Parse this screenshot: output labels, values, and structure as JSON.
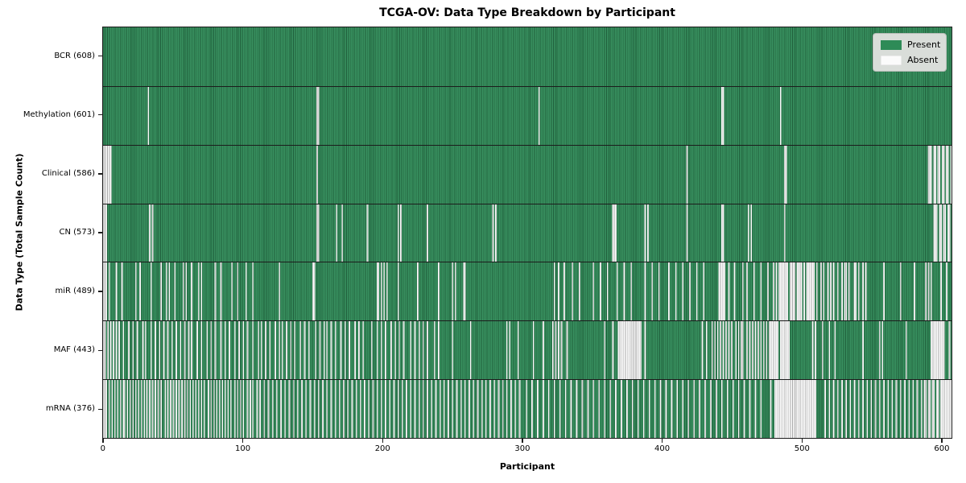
{
  "title": "TCGA-OV: Data Type Breakdown by Participant",
  "legend": {
    "items": [
      {
        "label": "Present",
        "color": "#2e8b57"
      },
      {
        "label": "Absent",
        "color": "#fbfbfb"
      }
    ]
  },
  "colors": {
    "present": "#2e8b57",
    "absent": "#fbfbfb",
    "edge": "rgba(0,0,0,0.32)",
    "edge_light": "rgba(255,255,255,0.05)",
    "spine": "#1c1c1c",
    "legend_bg": "#d9ddd9"
  },
  "chart_data": {
    "type": "heatmap",
    "title": "TCGA-OV: Data Type Breakdown by Participant",
    "xlabel": "Participant",
    "ylabel": "Data Type (Total Sample Count)",
    "x_ticks": [
      0,
      100,
      200,
      300,
      400,
      500,
      600
    ],
    "n_participants": 608,
    "legend": [
      "Present",
      "Absent"
    ],
    "cell_states": {
      "present": 1,
      "absent": 0
    },
    "rows": [
      {
        "name": "BCR",
        "present_count": 608,
        "label": "BCR (608)",
        "absent_participants": []
      },
      {
        "name": "Methylation",
        "present_count": 601,
        "label": "Methylation (601)",
        "absent_participants": [
          32,
          153,
          154,
          312,
          443,
          444,
          485
        ]
      },
      {
        "name": "Clinical",
        "present_count": 586,
        "label": "Clinical (586)",
        "absent_participants": [
          0,
          1,
          2,
          3,
          4,
          5,
          153,
          418,
          488,
          489,
          591,
          592,
          593,
          595,
          596,
          598,
          599,
          601,
          602,
          604,
          605,
          607
        ]
      },
      {
        "name": "CN",
        "present_count": 573,
        "label": "CN (573)",
        "absent_participants": [
          0,
          1,
          2,
          33,
          35,
          153,
          154,
          167,
          171,
          189,
          211,
          213,
          232,
          279,
          281,
          365,
          366,
          367,
          388,
          390,
          418,
          443,
          444,
          462,
          464,
          488,
          595,
          596,
          597,
          599,
          600,
          602,
          603,
          605,
          606
        ]
      },
      {
        "name": "miR",
        "present_count": 489,
        "label": "miR (489)",
        "absent_participants": [
          0,
          1,
          2,
          4,
          9,
          13,
          23,
          26,
          34,
          41,
          45,
          47,
          51,
          57,
          59,
          63,
          68,
          70,
          80,
          84,
          92,
          96,
          102,
          107,
          126,
          150,
          151,
          196,
          197,
          199,
          201,
          203,
          211,
          225,
          240,
          250,
          252,
          258,
          259,
          323,
          326,
          330,
          336,
          341,
          351,
          356,
          361,
          368,
          373,
          378,
          388,
          393,
          398,
          405,
          410,
          415,
          420,
          425,
          430,
          441,
          442,
          443,
          444,
          445,
          448,
          452,
          458,
          461,
          466,
          471,
          476,
          480,
          482,
          484,
          485,
          486,
          487,
          488,
          489,
          490,
          492,
          493,
          494,
          495,
          497,
          498,
          499,
          500,
          502,
          504,
          505,
          506,
          507,
          508,
          509,
          511,
          514,
          516,
          519,
          521,
          523,
          526,
          529,
          531,
          532,
          534,
          538,
          539,
          541,
          544,
          546,
          559,
          571,
          581,
          589,
          591,
          593,
          600,
          604
        ]
      },
      {
        "name": "MAF",
        "present_count": 443,
        "label": "MAF (443)",
        "absent_participants": [
          0,
          1,
          3,
          5,
          7,
          9,
          11,
          14,
          18,
          21,
          24,
          28,
          30,
          34,
          37,
          40,
          43,
          46,
          49,
          52,
          55,
          58,
          61,
          63,
          67,
          70,
          74,
          77,
          80,
          84,
          87,
          90,
          94,
          97,
          100,
          103,
          107,
          111,
          113,
          116,
          119,
          123,
          126,
          128,
          131,
          134,
          137,
          141,
          144,
          147,
          152,
          155,
          158,
          160,
          163,
          166,
          170,
          173,
          176,
          180,
          183,
          186,
          192,
          196,
          199,
          202,
          206,
          209,
          212,
          215,
          220,
          223,
          226,
          229,
          232,
          237,
          240,
          250,
          263,
          289,
          291,
          297,
          308,
          315,
          322,
          324,
          326,
          328,
          332,
          359,
          365,
          369,
          370,
          371,
          372,
          373,
          374,
          375,
          376,
          377,
          378,
          379,
          380,
          381,
          382,
          383,
          384,
          385,
          388,
          429,
          432,
          436,
          438,
          440,
          442,
          444,
          446,
          448,
          450,
          453,
          455,
          457,
          458,
          461,
          463,
          465,
          467,
          469,
          471,
          473,
          475,
          477,
          478,
          479,
          480,
          481,
          482,
          483,
          485,
          486,
          487,
          488,
          489,
          490,
          491,
          508,
          510,
          515,
          520,
          524,
          544,
          556,
          558,
          575,
          593,
          594,
          595,
          596,
          597,
          598,
          599,
          600,
          601,
          602,
          606
        ]
      },
      {
        "name": "mRNA",
        "present_count": 376,
        "label": "mRNA (376)",
        "absent_participants": [
          0,
          1,
          2,
          4,
          6,
          8,
          10,
          12,
          14,
          15,
          17,
          19,
          21,
          23,
          25,
          27,
          29,
          31,
          33,
          35,
          37,
          39,
          41,
          44,
          46,
          48,
          50,
          52,
          54,
          56,
          58,
          60,
          62,
          64,
          66,
          68,
          70,
          72,
          75,
          77,
          79,
          81,
          83,
          85,
          87,
          89,
          91,
          94,
          96,
          98,
          100,
          103,
          105,
          107,
          110,
          112,
          115,
          118,
          121,
          124,
          127,
          130,
          133,
          136,
          139,
          142,
          145,
          148,
          151,
          154,
          157,
          160,
          163,
          166,
          169,
          172,
          175,
          178,
          181,
          184,
          187,
          190,
          193,
          196,
          199,
          202,
          205,
          208,
          211,
          214,
          217,
          220,
          223,
          226,
          229,
          232,
          235,
          238,
          241,
          244,
          247,
          250,
          253,
          256,
          259,
          262,
          265,
          268,
          271,
          274,
          277,
          280,
          283,
          286,
          289,
          292,
          295,
          298,
          303,
          307,
          311,
          315,
          319,
          323,
          327,
          331,
          335,
          339,
          343,
          347,
          351,
          355,
          359,
          363,
          367,
          371,
          375,
          379,
          383,
          387,
          391,
          395,
          399,
          403,
          407,
          411,
          415,
          419,
          423,
          427,
          431,
          435,
          439,
          443,
          447,
          451,
          455,
          459,
          463,
          467,
          471,
          478,
          481,
          482,
          483,
          484,
          485,
          486,
          487,
          488,
          489,
          490,
          491,
          492,
          493,
          494,
          495,
          496,
          497,
          498,
          499,
          500,
          501,
          502,
          503,
          504,
          505,
          506,
          507,
          508,
          509,
          510,
          517,
          520,
          523,
          526,
          529,
          532,
          535,
          538,
          541,
          544,
          547,
          550,
          553,
          556,
          559,
          562,
          565,
          568,
          571,
          574,
          577,
          580,
          583,
          586,
          588,
          589,
          591,
          592,
          594,
          595,
          597,
          598,
          600,
          601,
          602,
          603,
          604,
          605,
          606,
          607
        ]
      }
    ]
  }
}
